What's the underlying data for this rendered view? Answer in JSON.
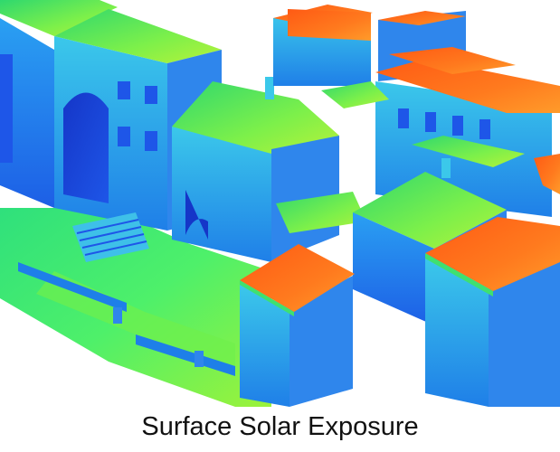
{
  "caption": "Surface Solar Exposure",
  "colormap": {
    "low": "#1e56e8",
    "mid_low": "#2fa3f0",
    "mid": "#3fe070",
    "mid_high": "#9cf23a",
    "high": "#ff6f1a"
  }
}
